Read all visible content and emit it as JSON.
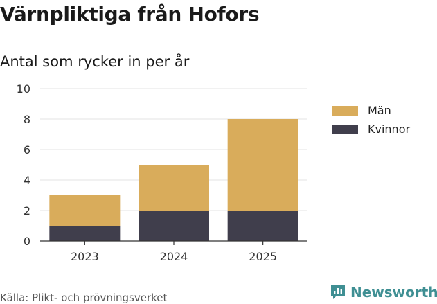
{
  "title": "Värnpliktiga från Hofors",
  "subtitle": "Antal som rycker in per år",
  "source": "Källa: Plikt- och prövningsverket",
  "brand": {
    "name": "Newsworthy",
    "icon": "newsworthy-logo-icon",
    "color": "#3f8f93"
  },
  "chart_data": {
    "type": "bar",
    "stacked": true,
    "title": "Värnpliktiga från Hofors",
    "subtitle": "Antal som rycker in per år",
    "xlabel": "",
    "ylabel": "",
    "categories": [
      "2023",
      "2024",
      "2025"
    ],
    "ylim": [
      0,
      10
    ],
    "yticks": [
      0,
      2,
      4,
      6,
      8,
      10
    ],
    "grid": true,
    "legend_position": "right",
    "series": [
      {
        "name": "Kvinnor",
        "values": [
          1,
          2,
          2
        ],
        "color": "#403e4c"
      },
      {
        "name": "Män",
        "values": [
          2,
          3,
          6
        ],
        "color": "#d9ac5b"
      }
    ],
    "legend_order": [
      "Män",
      "Kvinnor"
    ]
  }
}
